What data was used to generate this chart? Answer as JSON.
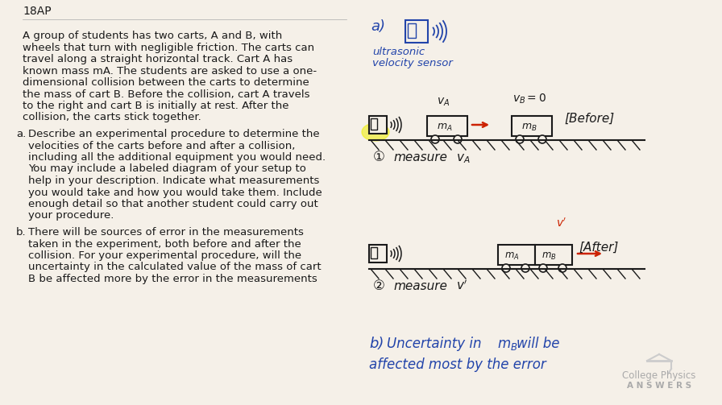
{
  "background_color": "#f5f0e8",
  "title_text": "18AP",
  "left_panel": {
    "main_text_lines": [
      "A group of students has two carts, A and B, with",
      "wheels that turn with negligible friction. The carts can",
      "travel along a straight horizontal track. Cart A has",
      "known mass mA. The students are asked to use a one-",
      "dimensional collision between the carts to determine",
      "the mass of cart B. Before the collision, cart A travels",
      "to the right and cart B is initially at rest. After the",
      "collision, the carts stick together."
    ],
    "part_a_lines": [
      "Describe an experimental procedure to determine the",
      "velocities of the carts before and after a collision,",
      "including all the additional equipment you would need.",
      "You may include a labeled diagram of your setup to",
      "help in your description. Indicate what measurements",
      "you would take and how you would take them. Include",
      "enough detail so that another student could carry out",
      "your procedure."
    ],
    "part_b_lines": [
      "There will be sources of error in the measurements",
      "taken in the experiment, both before and after the",
      "collision. For your experimental procedure, will the",
      "uncertainty in the calculated value of the mass of cart",
      "B be affected more by the error in the measurements"
    ]
  },
  "right_panel": {
    "part_a_label": "a)",
    "sensor_label_1": "ultrasonic",
    "sensor_label_2": "velocity sensor",
    "before_label": "[Before]",
    "after_label": "[After]",
    "step1_label": "①",
    "step2_label": "②",
    "measure1_label": "measure",
    "measure2_label": "measure",
    "part_b_label": "b)",
    "part_b_text_line1_pre": "Uncertainty in",
    "part_b_text_line1_mid": "mB",
    "part_b_text_line1_post": "will be",
    "part_b_text_line2": "affected most by the error"
  },
  "watermark_line1": "College Physics",
  "watermark_line2": "A N S W E R S",
  "text_color": "#1a1a1a",
  "blue_color": "#2244aa",
  "red_color": "#cc2200",
  "font_size_body": 9.5,
  "font_size_title": 10
}
